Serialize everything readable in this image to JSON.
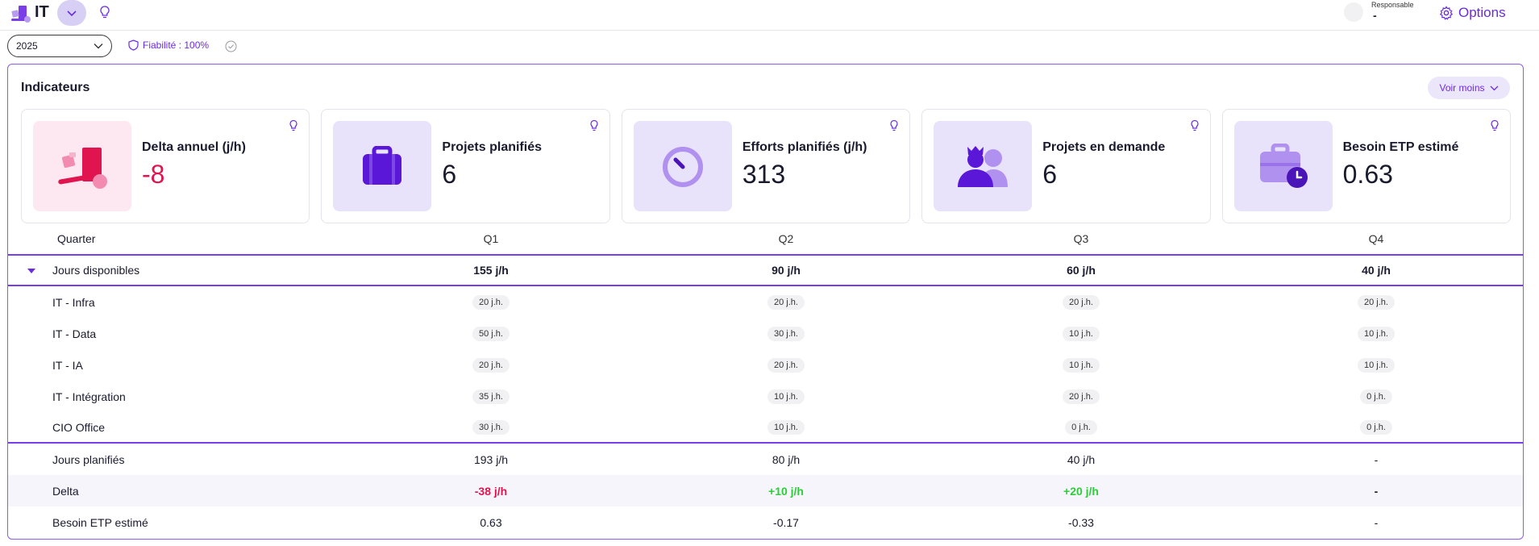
{
  "header": {
    "app_title": "IT",
    "responsable_label": "Responsable",
    "responsable_value": "-",
    "options_label": "Options"
  },
  "filters": {
    "year": "2025",
    "reliability": "Fiabilité : 100%"
  },
  "indicators": {
    "title": "Indicateurs",
    "toggle_label": "Voir moins",
    "cards": [
      {
        "label": "Delta annuel (j/h)",
        "value": "-8",
        "color": "#e0154f",
        "icon": "delivery-icon"
      },
      {
        "label": "Projets planifiés",
        "value": "6",
        "color": "#1a1a2e",
        "icon": "briefcase-icon"
      },
      {
        "label": "Efforts planifiés (j/h)",
        "value": "313",
        "color": "#1a1a2e",
        "icon": "timer-icon"
      },
      {
        "label": "Projets en demande",
        "value": "6",
        "color": "#1a1a2e",
        "icon": "users-icon"
      },
      {
        "label": "Besoin ETP estimé",
        "value": "0.63",
        "color": "#1a1a2e",
        "icon": "briefcase-clock-icon"
      }
    ]
  },
  "table": {
    "headers": [
      "Quarter",
      "Q1",
      "Q2",
      "Q3",
      "Q4"
    ],
    "section": {
      "label": "Jours disponibles",
      "values": [
        "155 j/h",
        "90 j/h",
        "60 j/h",
        "40 j/h"
      ]
    },
    "sub_rows": [
      {
        "label": "IT - Infra",
        "values": [
          "20 j.h.",
          "20 j.h.",
          "20 j.h.",
          "20 j.h."
        ]
      },
      {
        "label": "IT - Data",
        "values": [
          "50 j.h.",
          "30 j.h.",
          "10 j.h.",
          "10 j.h."
        ]
      },
      {
        "label": "IT - IA",
        "values": [
          "20 j.h.",
          "20 j.h.",
          "10 j.h.",
          "10 j.h."
        ]
      },
      {
        "label": "IT - Intégration",
        "values": [
          "35 j.h.",
          "10 j.h.",
          "20 j.h.",
          "0 j.h."
        ]
      },
      {
        "label": "CIO Office",
        "values": [
          "30 j.h.",
          "10 j.h.",
          "0 j.h.",
          "0 j.h."
        ]
      }
    ],
    "planned": {
      "label": "Jours planifiés",
      "values": [
        "193 j/h",
        "80 j/h",
        "40 j/h",
        "-"
      ]
    },
    "delta": {
      "label": "Delta",
      "values": [
        "-38 j/h",
        "+10 j/h",
        "+20 j/h",
        "-"
      ]
    },
    "etp": {
      "label": "Besoin ETP estimé",
      "values": [
        "0.63",
        "-0.17",
        "-0.33",
        "-"
      ]
    }
  },
  "colors": {
    "accent": "#6a2ce0",
    "negative": "#e0154f",
    "positive": "#2ecc3a"
  }
}
